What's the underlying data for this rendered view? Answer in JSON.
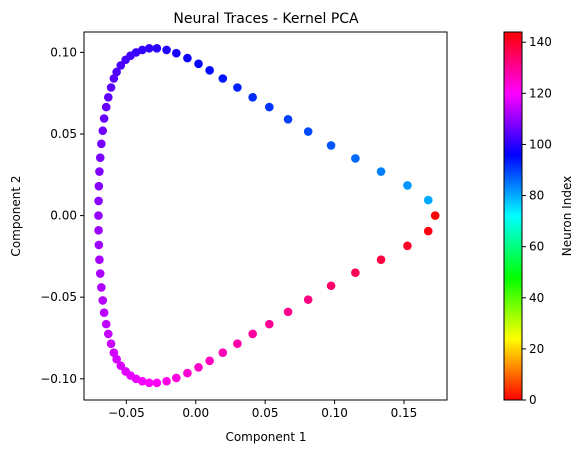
{
  "chart_data": {
    "type": "scatter",
    "title": "Neural Traces - Kernel PCA",
    "xlabel": "Component 1",
    "ylabel": "Component 2",
    "xlim": [
      -0.0805,
      0.181
    ],
    "ylim": [
      -0.113,
      0.1125
    ],
    "xticks": [
      -0.05,
      0.0,
      0.05,
      0.1,
      0.15
    ],
    "xtick_labels": [
      "−0.05",
      "0.00",
      "0.05",
      "0.10",
      "0.15"
    ],
    "yticks": [
      -0.1,
      -0.05,
      0.0,
      0.05,
      0.1
    ],
    "ytick_labels": [
      "−0.10",
      "−0.05",
      "0.00",
      "0.05",
      "0.10"
    ],
    "grid": false,
    "colormap": "hsv",
    "colorbar": {
      "label": "Neuron Index",
      "range": [
        0,
        144
      ],
      "ticks": [
        0,
        20,
        40,
        60,
        80,
        100,
        120,
        140
      ],
      "tick_labels": [
        "0",
        "20",
        "40",
        "60",
        "80",
        "100",
        "120",
        "140"
      ]
    },
    "points": [
      {
        "x": 0.1725,
        "y": 0.0,
        "c": 0
      },
      {
        "x": 0.1675,
        "y": 0.0095,
        "c": 80
      },
      {
        "x": 0.1525,
        "y": 0.0185,
        "c": 82
      },
      {
        "x": 0.1335,
        "y": 0.027,
        "c": 84
      },
      {
        "x": 0.115,
        "y": 0.035,
        "c": 86
      },
      {
        "x": 0.0975,
        "y": 0.043,
        "c": 88
      },
      {
        "x": 0.081,
        "y": 0.0515,
        "c": 89
      },
      {
        "x": 0.0665,
        "y": 0.059,
        "c": 90
      },
      {
        "x": 0.053,
        "y": 0.0665,
        "c": 91
      },
      {
        "x": 0.041,
        "y": 0.0725,
        "c": 92
      },
      {
        "x": 0.03,
        "y": 0.0785,
        "c": 93
      },
      {
        "x": 0.0195,
        "y": 0.084,
        "c": 94
      },
      {
        "x": 0.01,
        "y": 0.089,
        "c": 95
      },
      {
        "x": 0.002,
        "y": 0.093,
        "c": 96
      },
      {
        "x": -0.006,
        "y": 0.0965,
        "c": 97
      },
      {
        "x": -0.014,
        "y": 0.0995,
        "c": 98
      },
      {
        "x": -0.021,
        "y": 0.1015,
        "c": 99
      },
      {
        "x": -0.028,
        "y": 0.1025,
        "c": 100
      },
      {
        "x": -0.0335,
        "y": 0.1025,
        "c": 100.5
      },
      {
        "x": -0.0385,
        "y": 0.1015,
        "c": 101
      },
      {
        "x": -0.043,
        "y": 0.1,
        "c": 101.5
      },
      {
        "x": -0.047,
        "y": 0.098,
        "c": 102
      },
      {
        "x": -0.0505,
        "y": 0.0955,
        "c": 102.5
      },
      {
        "x": -0.054,
        "y": 0.092,
        "c": 103
      },
      {
        "x": -0.057,
        "y": 0.088,
        "c": 103.5
      },
      {
        "x": -0.059,
        "y": 0.084,
        "c": 104
      },
      {
        "x": -0.061,
        "y": 0.0785,
        "c": 104.5
      },
      {
        "x": -0.063,
        "y": 0.0725,
        "c": 105
      },
      {
        "x": -0.0645,
        "y": 0.0665,
        "c": 105.5
      },
      {
        "x": -0.066,
        "y": 0.0595,
        "c": 106
      },
      {
        "x": -0.067,
        "y": 0.052,
        "c": 106.5
      },
      {
        "x": -0.068,
        "y": 0.044,
        "c": 107
      },
      {
        "x": -0.0688,
        "y": 0.0355,
        "c": 107.5
      },
      {
        "x": -0.0694,
        "y": 0.027,
        "c": 108
      },
      {
        "x": -0.0698,
        "y": 0.018,
        "c": 108.5
      },
      {
        "x": -0.07,
        "y": 0.009,
        "c": 109
      },
      {
        "x": -0.0701,
        "y": 0.0,
        "c": 110
      },
      {
        "x": -0.07,
        "y": -0.009,
        "c": 110.5
      },
      {
        "x": -0.0698,
        "y": -0.018,
        "c": 111
      },
      {
        "x": -0.0694,
        "y": -0.027,
        "c": 111.5
      },
      {
        "x": -0.0688,
        "y": -0.0355,
        "c": 112
      },
      {
        "x": -0.068,
        "y": -0.044,
        "c": 112.5
      },
      {
        "x": -0.067,
        "y": -0.052,
        "c": 113
      },
      {
        "x": -0.066,
        "y": -0.0595,
        "c": 113.5
      },
      {
        "x": -0.0645,
        "y": -0.0665,
        "c": 114
      },
      {
        "x": -0.063,
        "y": -0.0725,
        "c": 114.5
      },
      {
        "x": -0.061,
        "y": -0.0785,
        "c": 115
      },
      {
        "x": -0.059,
        "y": -0.084,
        "c": 115.5
      },
      {
        "x": -0.057,
        "y": -0.088,
        "c": 116
      },
      {
        "x": -0.054,
        "y": -0.092,
        "c": 116.5
      },
      {
        "x": -0.0505,
        "y": -0.0955,
        "c": 117
      },
      {
        "x": -0.047,
        "y": -0.098,
        "c": 117.5
      },
      {
        "x": -0.043,
        "y": -0.1,
        "c": 118
      },
      {
        "x": -0.0385,
        "y": -0.1015,
        "c": 119
      },
      {
        "x": -0.0335,
        "y": -0.1025,
        "c": 120
      },
      {
        "x": -0.028,
        "y": -0.1025,
        "c": 121
      },
      {
        "x": -0.021,
        "y": -0.1015,
        "c": 122
      },
      {
        "x": -0.014,
        "y": -0.0995,
        "c": 123
      },
      {
        "x": -0.006,
        "y": -0.0965,
        "c": 124
      },
      {
        "x": 0.002,
        "y": -0.093,
        "c": 125
      },
      {
        "x": 0.01,
        "y": -0.089,
        "c": 126
      },
      {
        "x": 0.0195,
        "y": -0.084,
        "c": 127
      },
      {
        "x": 0.03,
        "y": -0.0785,
        "c": 128
      },
      {
        "x": 0.041,
        "y": -0.0725,
        "c": 129
      },
      {
        "x": 0.053,
        "y": -0.0665,
        "c": 130
      },
      {
        "x": 0.0665,
        "y": -0.059,
        "c": 131
      },
      {
        "x": 0.081,
        "y": -0.0515,
        "c": 132
      },
      {
        "x": 0.0975,
        "y": -0.043,
        "c": 134
      },
      {
        "x": 0.115,
        "y": -0.035,
        "c": 136
      },
      {
        "x": 0.1335,
        "y": -0.027,
        "c": 138
      },
      {
        "x": 0.1525,
        "y": -0.0185,
        "c": 140
      },
      {
        "x": 0.1675,
        "y": -0.0095,
        "c": 142
      }
    ]
  }
}
